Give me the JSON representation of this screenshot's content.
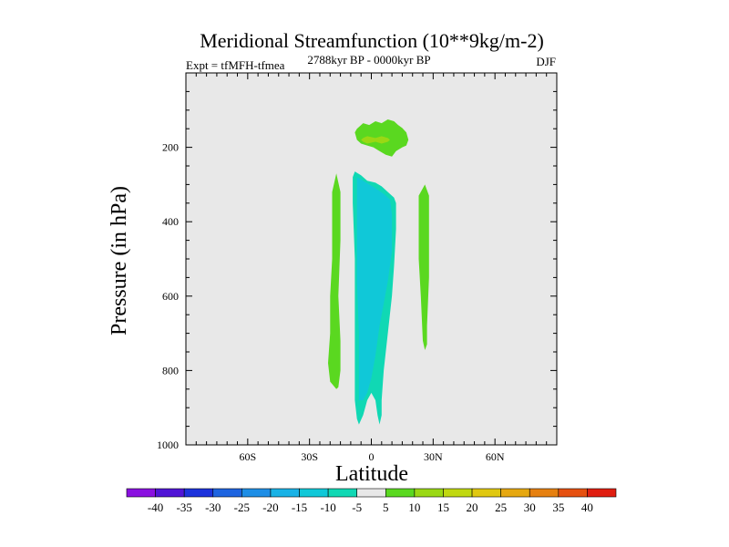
{
  "chart_data": {
    "type": "contour",
    "title": "Meridional Streamfunction (10**9kg/m-2)",
    "subtitle_left": "Expt = tfMFH-tfmea",
    "subtitle_center": "2788kyr BP - 0000kyr BP",
    "subtitle_right": "DJF",
    "xlabel": "Latitude",
    "ylabel": "Pressure (in hPa)",
    "xlim": [
      -90,
      90
    ],
    "ylim": [
      1000,
      0
    ],
    "x_ticks": [
      {
        "value": -60,
        "label": "60S"
      },
      {
        "value": -30,
        "label": "30S"
      },
      {
        "value": 0,
        "label": "0"
      },
      {
        "value": 30,
        "label": "30N"
      },
      {
        "value": 60,
        "label": "60N"
      }
    ],
    "y_ticks": [
      {
        "value": 200,
        "label": "200"
      },
      {
        "value": 400,
        "label": "400"
      },
      {
        "value": 600,
        "label": "600"
      },
      {
        "value": 800,
        "label": "800"
      },
      {
        "value": 1000,
        "label": "1000"
      }
    ],
    "background_color": "#e8e8e8",
    "contour_levels": [
      -40,
      -35,
      -30,
      -25,
      -20,
      -15,
      -10,
      -5,
      5,
      10,
      15,
      20,
      25,
      30,
      35,
      40
    ],
    "colorbar_colors": [
      "#8a10e0",
      "#5014d6",
      "#1c32dc",
      "#1e64e0",
      "#1e8ee6",
      "#18b2e6",
      "#10c8d8",
      "#10d8b4",
      "#e8e8e8",
      "#5ad820",
      "#9ad814",
      "#c0d810",
      "#e0c810",
      "#e6a810",
      "#e68010",
      "#e65010",
      "#e01e10"
    ],
    "regions": [
      {
        "name": "sh-positive-cell",
        "value": 5,
        "color": "#5ad820",
        "points": [
          [
            -17,
            270
          ],
          [
            -15,
            320
          ],
          [
            -15,
            450
          ],
          [
            -16,
            600
          ],
          [
            -15,
            720
          ],
          [
            -15,
            800
          ],
          [
            -16,
            845
          ],
          [
            -17,
            850
          ],
          [
            -20,
            830
          ],
          [
            -21,
            780
          ],
          [
            -20,
            700
          ],
          [
            -20,
            600
          ],
          [
            -19,
            500
          ],
          [
            -19,
            400
          ],
          [
            -19,
            320
          ]
        ]
      },
      {
        "name": "nh-positive-cell",
        "value": 5,
        "color": "#5ad820",
        "points": [
          [
            26,
            300
          ],
          [
            28,
            330
          ],
          [
            28,
            450
          ],
          [
            28,
            550
          ],
          [
            27,
            680
          ],
          [
            27,
            730
          ],
          [
            26,
            745
          ],
          [
            25,
            720
          ],
          [
            24,
            600
          ],
          [
            23,
            500
          ],
          [
            23,
            400
          ],
          [
            23,
            330
          ]
        ]
      },
      {
        "name": "upper-positive-cell",
        "value": 5,
        "color": "#5ad820",
        "points": [
          [
            -7,
            150
          ],
          [
            -4,
            135
          ],
          [
            -1,
            140
          ],
          [
            2,
            130
          ],
          [
            5,
            135
          ],
          [
            8,
            125
          ],
          [
            11,
            130
          ],
          [
            13,
            140
          ],
          [
            15,
            148
          ],
          [
            17,
            160
          ],
          [
            18,
            180
          ],
          [
            17,
            195
          ],
          [
            15,
            200
          ],
          [
            12,
            210
          ],
          [
            10,
            225
          ],
          [
            7,
            220
          ],
          [
            4,
            210
          ],
          [
            1,
            200
          ],
          [
            -2,
            195
          ],
          [
            -5,
            190
          ],
          [
            -7,
            180
          ],
          [
            -8,
            160
          ]
        ]
      },
      {
        "name": "upper-core",
        "value": 10,
        "color": "#9ad814",
        "points": [
          [
            -4,
            175
          ],
          [
            -2,
            170
          ],
          [
            2,
            175
          ],
          [
            5,
            170
          ],
          [
            8,
            175
          ],
          [
            9,
            180
          ],
          [
            8,
            185
          ],
          [
            5,
            190
          ],
          [
            2,
            185
          ],
          [
            -2,
            190
          ],
          [
            -4,
            185
          ],
          [
            -5,
            180
          ]
        ]
      },
      {
        "name": "equatorial-negative-outer",
        "value": -5,
        "color": "#10d8b4",
        "points": [
          [
            -8,
            265
          ],
          [
            -5,
            275
          ],
          [
            -2,
            290
          ],
          [
            2,
            295
          ],
          [
            5,
            305
          ],
          [
            8,
            320
          ],
          [
            11,
            335
          ],
          [
            12,
            350
          ],
          [
            12,
            420
          ],
          [
            11,
            520
          ],
          [
            10,
            600
          ],
          [
            8,
            700
          ],
          [
            6,
            800
          ],
          [
            5,
            880
          ],
          [
            5,
            920
          ],
          [
            4,
            945
          ],
          [
            3,
            920
          ],
          [
            2,
            880
          ],
          [
            0,
            860
          ],
          [
            -2,
            880
          ],
          [
            -4,
            920
          ],
          [
            -6,
            945
          ],
          [
            -7,
            930
          ],
          [
            -8,
            880
          ],
          [
            -8,
            800
          ],
          [
            -8,
            700
          ],
          [
            -8,
            500
          ],
          [
            -9,
            350
          ],
          [
            -9,
            280
          ]
        ]
      },
      {
        "name": "equatorial-negative-inner",
        "value": -10,
        "color": "#10c8d8",
        "points": [
          [
            -7,
            280
          ],
          [
            -4,
            290
          ],
          [
            -1,
            300
          ],
          [
            2,
            310
          ],
          [
            6,
            325
          ],
          [
            9,
            340
          ],
          [
            10,
            380
          ],
          [
            10,
            480
          ],
          [
            8,
            560
          ],
          [
            6,
            620
          ],
          [
            4,
            680
          ],
          [
            2,
            760
          ],
          [
            0,
            820
          ],
          [
            -2,
            860
          ],
          [
            -4,
            880
          ],
          [
            -6,
            880
          ],
          [
            -6,
            800
          ],
          [
            -6,
            700
          ],
          [
            -7,
            560
          ],
          [
            -7,
            450
          ],
          [
            -7,
            350
          ]
        ]
      }
    ]
  }
}
